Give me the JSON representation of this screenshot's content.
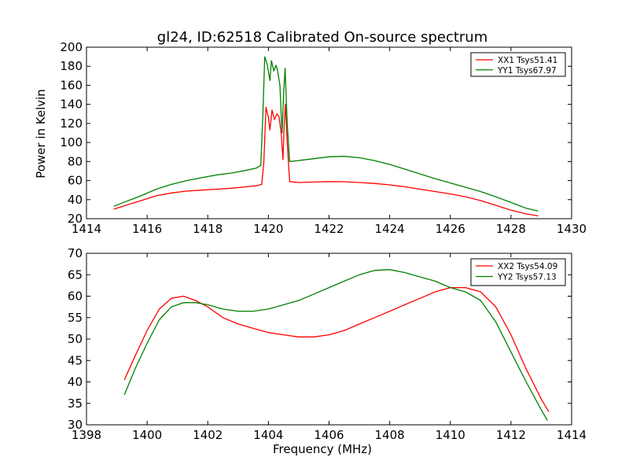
{
  "chart_data": [
    {
      "type": "line",
      "title": "gl24, ID:62518 Calibrated On-source spectrum",
      "xlabel": "",
      "ylabel": "Power in Kelvin",
      "xlim": [
        1414,
        1430
      ],
      "ylim": [
        20,
        200
      ],
      "xticks": [
        1414,
        1416,
        1418,
        1420,
        1422,
        1424,
        1426,
        1428,
        1430
      ],
      "yticks": [
        20,
        40,
        60,
        80,
        100,
        120,
        140,
        160,
        180,
        200
      ],
      "legend_position": "top-right",
      "grid": false,
      "series": [
        {
          "name": "XX1 Tsys51.41",
          "color": "#ff0000",
          "x": [
            1414.9,
            1415.3,
            1415.8,
            1416.3,
            1416.8,
            1417.3,
            1417.8,
            1418.3,
            1418.8,
            1419.3,
            1419.6,
            1419.78,
            1419.85,
            1419.92,
            1420.0,
            1420.05,
            1420.12,
            1420.2,
            1420.28,
            1420.35,
            1420.42,
            1420.48,
            1420.52,
            1420.56,
            1420.62,
            1420.7,
            1421.0,
            1421.5,
            1422.0,
            1422.5,
            1423.0,
            1423.5,
            1424.0,
            1424.5,
            1425.0,
            1425.5,
            1426.0,
            1426.5,
            1427.0,
            1427.5,
            1428.0,
            1428.5,
            1428.9
          ],
          "y": [
            30,
            34,
            39,
            44,
            47,
            49,
            50,
            51,
            52,
            53.5,
            54.5,
            56,
            80,
            137,
            126,
            113,
            134,
            124,
            130,
            127,
            110,
            82,
            118,
            140,
            100,
            59,
            58,
            58.5,
            59,
            58.8,
            58,
            57,
            55.5,
            53.5,
            51,
            48.5,
            46,
            43,
            39,
            34,
            29,
            25,
            23
          ]
        },
        {
          "name": "YY1 Tsys67.97",
          "color": "#008000",
          "x": [
            1414.9,
            1415.3,
            1415.8,
            1416.3,
            1416.8,
            1417.3,
            1417.8,
            1418.3,
            1418.8,
            1419.3,
            1419.6,
            1419.75,
            1419.82,
            1419.88,
            1419.96,
            1420.05,
            1420.1,
            1420.18,
            1420.25,
            1420.3,
            1420.38,
            1420.45,
            1420.5,
            1420.55,
            1420.62,
            1420.7,
            1421.0,
            1421.5,
            1422.0,
            1422.5,
            1423.0,
            1423.5,
            1424.0,
            1424.5,
            1425.0,
            1425.5,
            1426.0,
            1426.5,
            1427.0,
            1427.5,
            1428.0,
            1428.5,
            1428.9
          ],
          "y": [
            33,
            38,
            44,
            51,
            56,
            60,
            63,
            66,
            68,
            71,
            73,
            76,
            130,
            190,
            182,
            165,
            186,
            175,
            181,
            176,
            160,
            110,
            150,
            178,
            120,
            80,
            81,
            83,
            85,
            85.5,
            84,
            81,
            77,
            72,
            67,
            62,
            57.5,
            53,
            48.5,
            43,
            37,
            31,
            28
          ]
        }
      ]
    },
    {
      "type": "line",
      "title": "",
      "xlabel": "Frequency (MHz)",
      "ylabel": "",
      "xlim": [
        1398,
        1414
      ],
      "ylim": [
        30,
        70
      ],
      "xticks": [
        1398,
        1400,
        1402,
        1404,
        1406,
        1408,
        1410,
        1412,
        1414
      ],
      "yticks": [
        30,
        35,
        40,
        45,
        50,
        55,
        60,
        65,
        70
      ],
      "legend_position": "top-right",
      "grid": false,
      "series": [
        {
          "name": "XX2 Tsys54.09",
          "color": "#ff0000",
          "x": [
            1399.25,
            1399.6,
            1400.0,
            1400.4,
            1400.8,
            1401.2,
            1401.6,
            1402.0,
            1402.5,
            1403.0,
            1403.5,
            1404.0,
            1404.5,
            1405.0,
            1405.5,
            1406.0,
            1406.5,
            1407.0,
            1407.5,
            1408.0,
            1408.5,
            1409.0,
            1409.5,
            1410.0,
            1410.5,
            1411.0,
            1411.5,
            1412.0,
            1412.5,
            1413.0,
            1413.25
          ],
          "y": [
            40.5,
            46,
            52,
            57,
            59.5,
            60,
            59,
            57.5,
            55,
            53.5,
            52.5,
            51.5,
            51,
            50.5,
            50.5,
            51,
            52,
            53.5,
            55,
            56.5,
            58,
            59.5,
            61,
            62,
            62,
            61,
            57.5,
            51,
            43,
            36,
            33
          ]
        },
        {
          "name": "YY2 Tsys57.13",
          "color": "#008000",
          "x": [
            1399.25,
            1399.6,
            1400.0,
            1400.4,
            1400.8,
            1401.2,
            1401.6,
            1402.0,
            1402.5,
            1403.0,
            1403.5,
            1404.0,
            1404.5,
            1405.0,
            1405.5,
            1406.0,
            1406.5,
            1407.0,
            1407.5,
            1408.0,
            1408.5,
            1409.0,
            1409.5,
            1410.0,
            1410.5,
            1411.0,
            1411.5,
            1412.0,
            1412.5,
            1413.0,
            1413.2
          ],
          "y": [
            37,
            43,
            49,
            54.5,
            57.5,
            58.5,
            58.5,
            58,
            57,
            56.5,
            56.5,
            57,
            58,
            59,
            60.5,
            62,
            63.5,
            65,
            66,
            66.2,
            65.5,
            64.5,
            63.5,
            62,
            61,
            59,
            54,
            47,
            40,
            33.5,
            31
          ]
        }
      ]
    }
  ]
}
